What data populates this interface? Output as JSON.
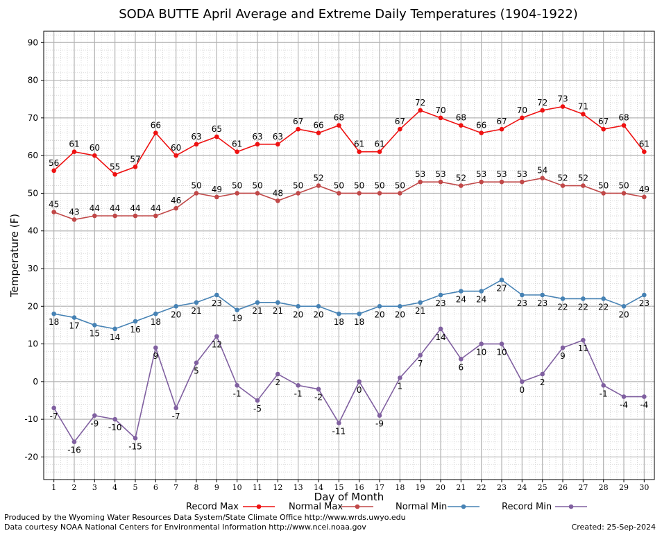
{
  "chart_data": {
    "type": "line",
    "title": "SODA BUTTE April Average and Extreme Daily Temperatures (1904-1922)",
    "xlabel": "Day of Month",
    "ylabel": "Temperature (F)",
    "x": [
      1,
      2,
      3,
      4,
      5,
      6,
      7,
      8,
      9,
      10,
      11,
      12,
      13,
      14,
      15,
      16,
      17,
      18,
      19,
      20,
      21,
      22,
      23,
      24,
      25,
      26,
      27,
      28,
      29,
      30
    ],
    "xlim": [
      0.5,
      30.5
    ],
    "ylim": [
      -26,
      93
    ],
    "yticks": [
      -20,
      -10,
      0,
      10,
      20,
      30,
      40,
      50,
      60,
      70,
      80,
      90
    ],
    "grid": true,
    "legend_position": "bottom",
    "series": [
      {
        "name": "Record Max",
        "color": "#ee1111",
        "label_position": "above",
        "values": [
          56,
          61,
          60,
          55,
          57,
          66,
          60,
          63,
          65,
          61,
          63,
          63,
          67,
          66,
          68,
          61,
          61,
          67,
          72,
          70,
          68,
          66,
          67,
          70,
          72,
          73,
          71,
          67,
          68,
          61
        ]
      },
      {
        "name": "Normal Max",
        "color": "#c04848",
        "label_position": "above",
        "values": [
          45,
          43,
          44,
          44,
          44,
          44,
          46,
          50,
          49,
          50,
          50,
          48,
          50,
          52,
          50,
          50,
          50,
          50,
          53,
          53,
          52,
          53,
          53,
          53,
          54,
          52,
          52,
          50,
          50,
          49
        ]
      },
      {
        "name": "Normal Min",
        "color": "#4682b4",
        "label_position": "below",
        "values": [
          18,
          17,
          15,
          14,
          16,
          18,
          20,
          21,
          23,
          19,
          21,
          21,
          20,
          20,
          18,
          18,
          20,
          20,
          21,
          23,
          24,
          24,
          27,
          23,
          23,
          22,
          22,
          22,
          20,
          23
        ]
      },
      {
        "name": "Record Min",
        "color": "#8060a0",
        "label_position": "below",
        "values": [
          -7,
          -16,
          -9,
          -10,
          -15,
          9,
          -7,
          5,
          12,
          -1,
          -5,
          2,
          -1,
          -2,
          -11,
          0,
          -9,
          1,
          7,
          14,
          6,
          10,
          10,
          0,
          2,
          9,
          11,
          -1,
          -4,
          -4
        ]
      }
    ]
  },
  "footer": {
    "produced_by": "Produced by the Wyoming Water Resources Data System/State Climate Office http://www.wrds.uwyo.edu",
    "data_courtesy": "Data courtesy NOAA National Centers for Environmental Information http://www.ncei.noaa.gov",
    "created": "Created: 25-Sep-2024"
  }
}
